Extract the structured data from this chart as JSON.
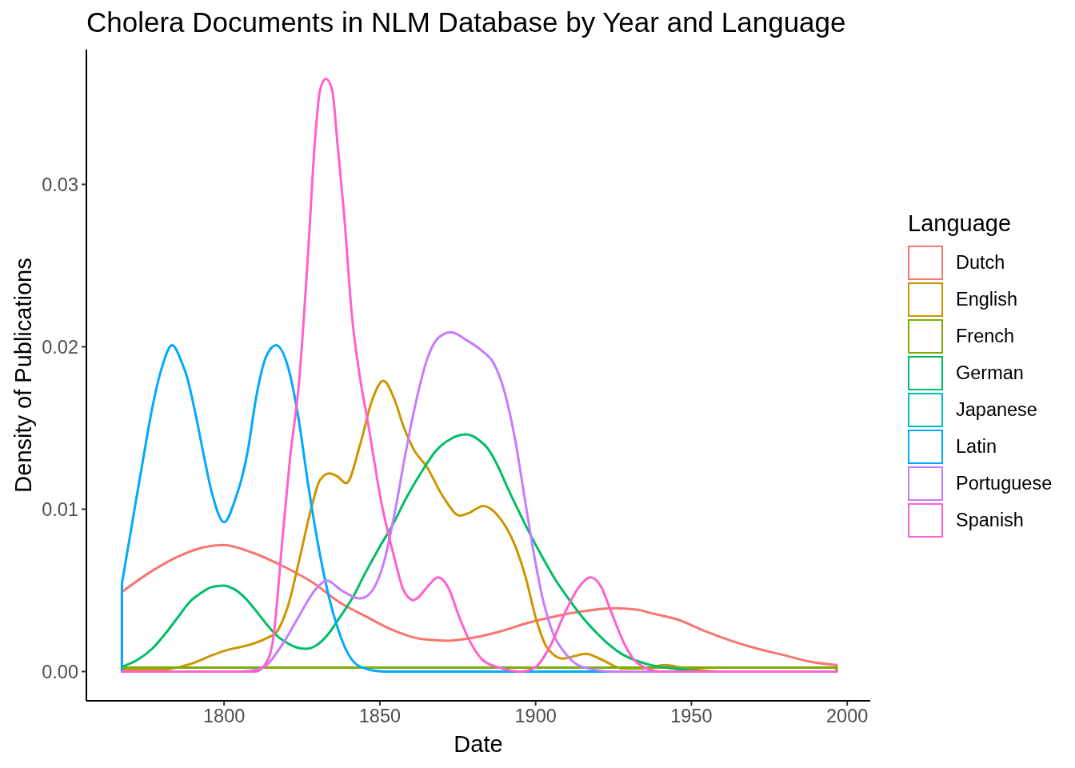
{
  "chart_data": {
    "type": "line",
    "title": "Cholera Documents in NLM Database by Year and Language",
    "xlabel": "Date",
    "ylabel": "Density of Publications",
    "legend_title": "Language",
    "legend": "right",
    "grid": false,
    "xlim": [
      1755.8,
      2007.4
    ],
    "xticks": [
      1800,
      1850,
      1900,
      1950,
      2000
    ],
    "ylim": [
      -0.0018,
      0.0383
    ],
    "yticks": [
      {
        "value": 0,
        "label": "0.00"
      },
      0.01,
      0.02,
      0.03
    ],
    "series": [
      {
        "name": "Dutch",
        "color": "#f8766d",
        "x": [
          1767.2,
          1767.2,
          1776.9,
          1785.4,
          1792.3,
          1799.8,
          1809.4,
          1818.8,
          1828.3,
          1836.8,
          1845.4,
          1854.8,
          1863.4,
          1871.9,
          1880.5,
          1889.1,
          1897.6,
          1906.2,
          1914.8,
          1925.1,
          1932.8,
          1937,
          1945.6,
          1954.2,
          1962.7,
          1971.3,
          1979.9,
          1988.4,
          1996.6,
          1996.6
        ],
        "values": [
          0,
          0.0049,
          0.0062,
          0.0071,
          0.0076,
          0.0078,
          0.0073,
          0.0065,
          0.0055,
          0.0043,
          0.0034,
          0.0025,
          0.002,
          0.0019,
          0.0021,
          0.0025,
          0.003,
          0.0034,
          0.0037,
          0.0039,
          0.0038,
          0.0036,
          0.0032,
          0.0025,
          0.0019,
          0.0014,
          0.001,
          0.0006,
          0.0004,
          0
        ]
      },
      {
        "name": "English",
        "color": "#cd9600",
        "x": [
          1767.2,
          1778,
          1783.3,
          1789.7,
          1796.1,
          1800.5,
          1805,
          1809,
          1814.1,
          1816.7,
          1820.6,
          1824.4,
          1828.3,
          1830.8,
          1833.8,
          1836.5,
          1839.2,
          1843.7,
          1847.5,
          1851.1,
          1854.8,
          1857.4,
          1860.8,
          1865.1,
          1870.2,
          1875.8,
          1879,
          1883.1,
          1889.1,
          1893.3,
          1896.8,
          1900.2,
          1903.6,
          1908.8,
          1916.1,
          1921.6,
          1927.6,
          1935,
          1941.3,
          1948,
          1960,
          1996.6
        ],
        "values": [
          0.0001,
          0.0001,
          0.0002,
          0.0005,
          0.001,
          0.0013,
          0.0015,
          0.0017,
          0.0021,
          0.0024,
          0.0041,
          0.0071,
          0.0103,
          0.0118,
          0.0122,
          0.012,
          0.0116,
          0.014,
          0.0167,
          0.0179,
          0.0167,
          0.0152,
          0.0137,
          0.0126,
          0.0108,
          0.0096,
          0.0098,
          0.0102,
          0.0093,
          0.0078,
          0.0058,
          0.0032,
          0.0015,
          0.0008,
          0.0011,
          0.0007,
          0.0002,
          0.0002,
          0.0004,
          0.0002,
          0,
          0
        ]
      },
      {
        "name": "French",
        "color": "#7cae00",
        "x": [
          1767.2,
          1767.2,
          1996.6,
          1996.6
        ],
        "values": [
          0,
          0.00025,
          0.00025,
          0
        ]
      },
      {
        "name": "German",
        "color": "#00be67",
        "x": [
          1767.2,
          1772,
          1776.9,
          1781,
          1785.4,
          1789,
          1792.3,
          1796,
          1799.8,
          1803,
          1806.9,
          1810,
          1813.7,
          1817,
          1820,
          1823,
          1826.1,
          1829.5,
          1833.4,
          1837,
          1841.1,
          1845.4,
          1849.7,
          1854,
          1858.5,
          1863.4,
          1868,
          1872.5,
          1877.7,
          1881.5,
          1884.8,
          1888,
          1890.8,
          1894,
          1897.6,
          1902,
          1906.2,
          1910.5,
          1914.8,
          1919,
          1923.3,
          1927.5,
          1931.9,
          1937,
          1943.9,
          1955,
          1996.6
        ],
        "values": [
          0.0003,
          0.0007,
          0.0014,
          0.0023,
          0.0034,
          0.0043,
          0.0048,
          0.0052,
          0.0053,
          0.0051,
          0.0045,
          0.0038,
          0.0029,
          0.0022,
          0.0018,
          0.0015,
          0.0014,
          0.0016,
          0.0023,
          0.0033,
          0.0045,
          0.0061,
          0.0076,
          0.009,
          0.0107,
          0.0123,
          0.0136,
          0.0143,
          0.0146,
          0.0143,
          0.0137,
          0.0126,
          0.0114,
          0.0101,
          0.0087,
          0.0071,
          0.0057,
          0.0045,
          0.0034,
          0.0025,
          0.0017,
          0.0011,
          0.0007,
          0.0004,
          0.0002,
          0,
          0
        ]
      },
      {
        "name": "Japanese",
        "color": "#00bfc4"
      },
      {
        "name": "Latin",
        "color": "#00a9ff",
        "x": [
          1767.2,
          1767.2,
          1769.5,
          1771.7,
          1774.3,
          1776.9,
          1780,
          1783.3,
          1786.5,
          1788,
          1791,
          1793.6,
          1796.1,
          1800,
          1803.9,
          1805.8,
          1807.7,
          1810.3,
          1813.5,
          1816.7,
          1820.6,
          1823.8,
          1827,
          1830.2,
          1833.4,
          1836.6,
          1839.8,
          1843.7,
          1851.4,
          1996.6
        ],
        "values": [
          0,
          0.0054,
          0.008,
          0.0105,
          0.0134,
          0.0162,
          0.0187,
          0.0201,
          0.019,
          0.0182,
          0.0157,
          0.0132,
          0.011,
          0.0092,
          0.0108,
          0.012,
          0.0137,
          0.0169,
          0.0194,
          0.0201,
          0.0187,
          0.0157,
          0.0115,
          0.0078,
          0.0048,
          0.0026,
          0.0011,
          0.0003,
          0,
          0
        ]
      },
      {
        "name": "Portuguese",
        "color": "#c77cff",
        "x": [
          1767.2,
          1805,
          1812,
          1818.8,
          1824,
          1829.1,
          1833,
          1837.7,
          1843.5,
          1846.2,
          1851.4,
          1854.8,
          1858.2,
          1861.7,
          1865.1,
          1868.5,
          1872.8,
          1877.9,
          1883.1,
          1886.5,
          1889.9,
          1893.3,
          1896.8,
          1899.4,
          1901.9,
          1905.3,
          1909.6,
          1914.8,
          1925,
          1996.6
        ],
        "values": [
          0,
          0,
          0.0002,
          0.0017,
          0.0034,
          0.005,
          0.0056,
          0.005,
          0.0045,
          0.0047,
          0.0068,
          0.0098,
          0.0134,
          0.0167,
          0.0192,
          0.0205,
          0.0209,
          0.0204,
          0.0197,
          0.019,
          0.0173,
          0.0144,
          0.0103,
          0.0073,
          0.0048,
          0.0025,
          0.0011,
          0.0003,
          0,
          0
        ]
      },
      {
        "name": "Spanish",
        "color": "#ff61cc",
        "x": [
          1767.2,
          1810,
          1813,
          1815.5,
          1818.8,
          1821.2,
          1824,
          1827,
          1829.1,
          1830.8,
          1832.7,
          1834.7,
          1836.4,
          1838.5,
          1841.1,
          1843.7,
          1846.2,
          1850.5,
          1854.8,
          1857.4,
          1859,
          1860.6,
          1862.5,
          1864.7,
          1868.8,
          1871.9,
          1875.4,
          1878.8,
          1883.1,
          1889.1,
          1895,
          1899.4,
          1904.5,
          1909.6,
          1913.9,
          1917.6,
          1920.8,
          1924.2,
          1928.5,
          1932.8,
          1940,
          1996.6
        ],
        "values": [
          0,
          0,
          0.0004,
          0.0017,
          0.0083,
          0.0132,
          0.0177,
          0.0259,
          0.0325,
          0.0358,
          0.0365,
          0.0358,
          0.0325,
          0.0282,
          0.0218,
          0.018,
          0.0153,
          0.0104,
          0.0069,
          0.0051,
          0.0046,
          0.0044,
          0.0046,
          0.0051,
          0.0058,
          0.0052,
          0.0034,
          0.0019,
          0.0007,
          0.0002,
          0,
          0.0002,
          0.0015,
          0.0037,
          0.0052,
          0.0058,
          0.0053,
          0.0037,
          0.0017,
          0.0005,
          0,
          0
        ]
      }
    ]
  }
}
